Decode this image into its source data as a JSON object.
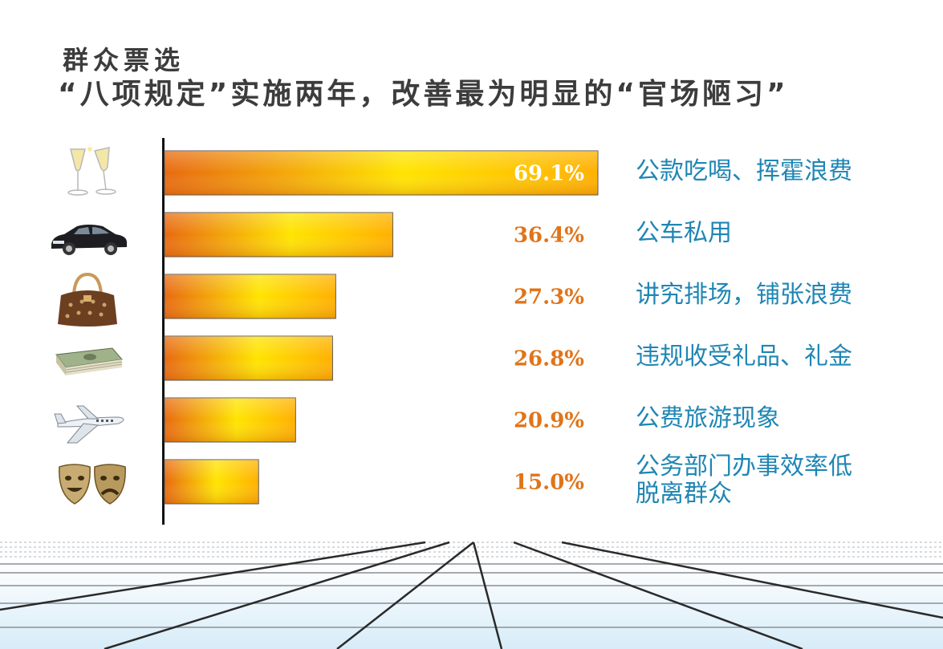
{
  "header": {
    "title_line1": "群众票选",
    "title_line2": "“八项规定”实施两年，改善最为明显的“官场陋习”"
  },
  "chart_data": {
    "type": "bar",
    "orientation": "horizontal",
    "categories": [
      "公款吃喝、挥霍浪费",
      "公车私用",
      "讲究排场，铺张浪费",
      "违规收受礼品、礼金",
      "公费旅游现象",
      "公务部门办事效率低\n脱离群众"
    ],
    "values": [
      69.1,
      36.4,
      27.3,
      26.8,
      20.9,
      15.0
    ],
    "value_labels": [
      "69.1%",
      "36.4%",
      "27.3%",
      "26.8%",
      "20.9%",
      "15.0%"
    ],
    "xlim": [
      0,
      69.1
    ],
    "icons": [
      "champagne-glasses-icon",
      "car-icon",
      "handbag-icon",
      "money-stack-icon",
      "airplane-icon",
      "theater-masks-icon"
    ],
    "colors": {
      "bar_edge": "#e86a10",
      "bar_mid": "#ffe400",
      "bar_end": "#ffb400",
      "value_text": "#e0741a",
      "value_text_inside": "#ffffff",
      "label_text": "#1f86b4"
    }
  }
}
